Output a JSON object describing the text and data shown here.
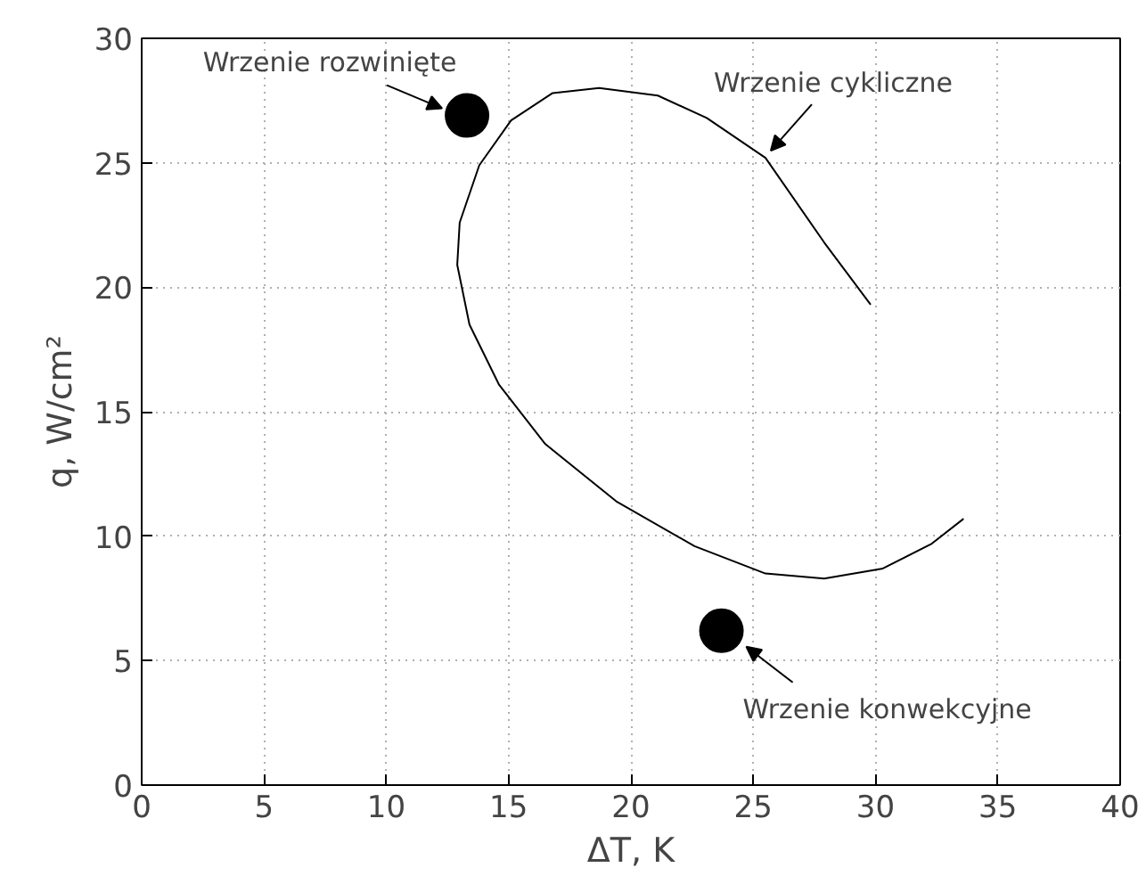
{
  "chart_data": {
    "type": "line",
    "xlabel": "ΔT, K",
    "ylabel": "q, W/cm²",
    "xlim": [
      0,
      40
    ],
    "ylim": [
      0,
      30
    ],
    "xticks": [
      0,
      5,
      10,
      15,
      20,
      25,
      30,
      35,
      40
    ],
    "yticks": [
      0,
      5,
      10,
      15,
      20,
      25,
      30
    ],
    "grid": true,
    "line_style": "solid",
    "series": [
      {
        "color": "#000000",
        "x": [
          29.8,
          27.9,
          25.5,
          23.1,
          21.1,
          18.7,
          16.8,
          15.1,
          13.8,
          13.0,
          12.9,
          13.4,
          14.6,
          16.5,
          19.4,
          22.6,
          25.5,
          27.9,
          30.3,
          32.3,
          33.6
        ],
        "values": [
          19.3,
          21.8,
          25.2,
          26.8,
          27.7,
          28.0,
          27.8,
          26.7,
          24.9,
          22.6,
          20.9,
          18.5,
          16.1,
          13.7,
          11.4,
          9.6,
          8.5,
          8.3,
          8.7,
          9.7,
          10.7
        ]
      },
      {
        "type": "scatter",
        "color": "#000000",
        "marker": "circle",
        "x": [
          13.3,
          23.7
        ],
        "values": [
          26.9,
          6.2
        ]
      }
    ],
    "annotations": [
      {
        "text": "Wrzenie rozwinięte",
        "x": 13.3,
        "y": 26.9
      },
      {
        "text": "Wrzenie cykliczne",
        "x": 25.5,
        "y": 25.2
      },
      {
        "text": "Wrzenie konwekcyjne",
        "x": 23.7,
        "y": 6.2
      }
    ]
  }
}
